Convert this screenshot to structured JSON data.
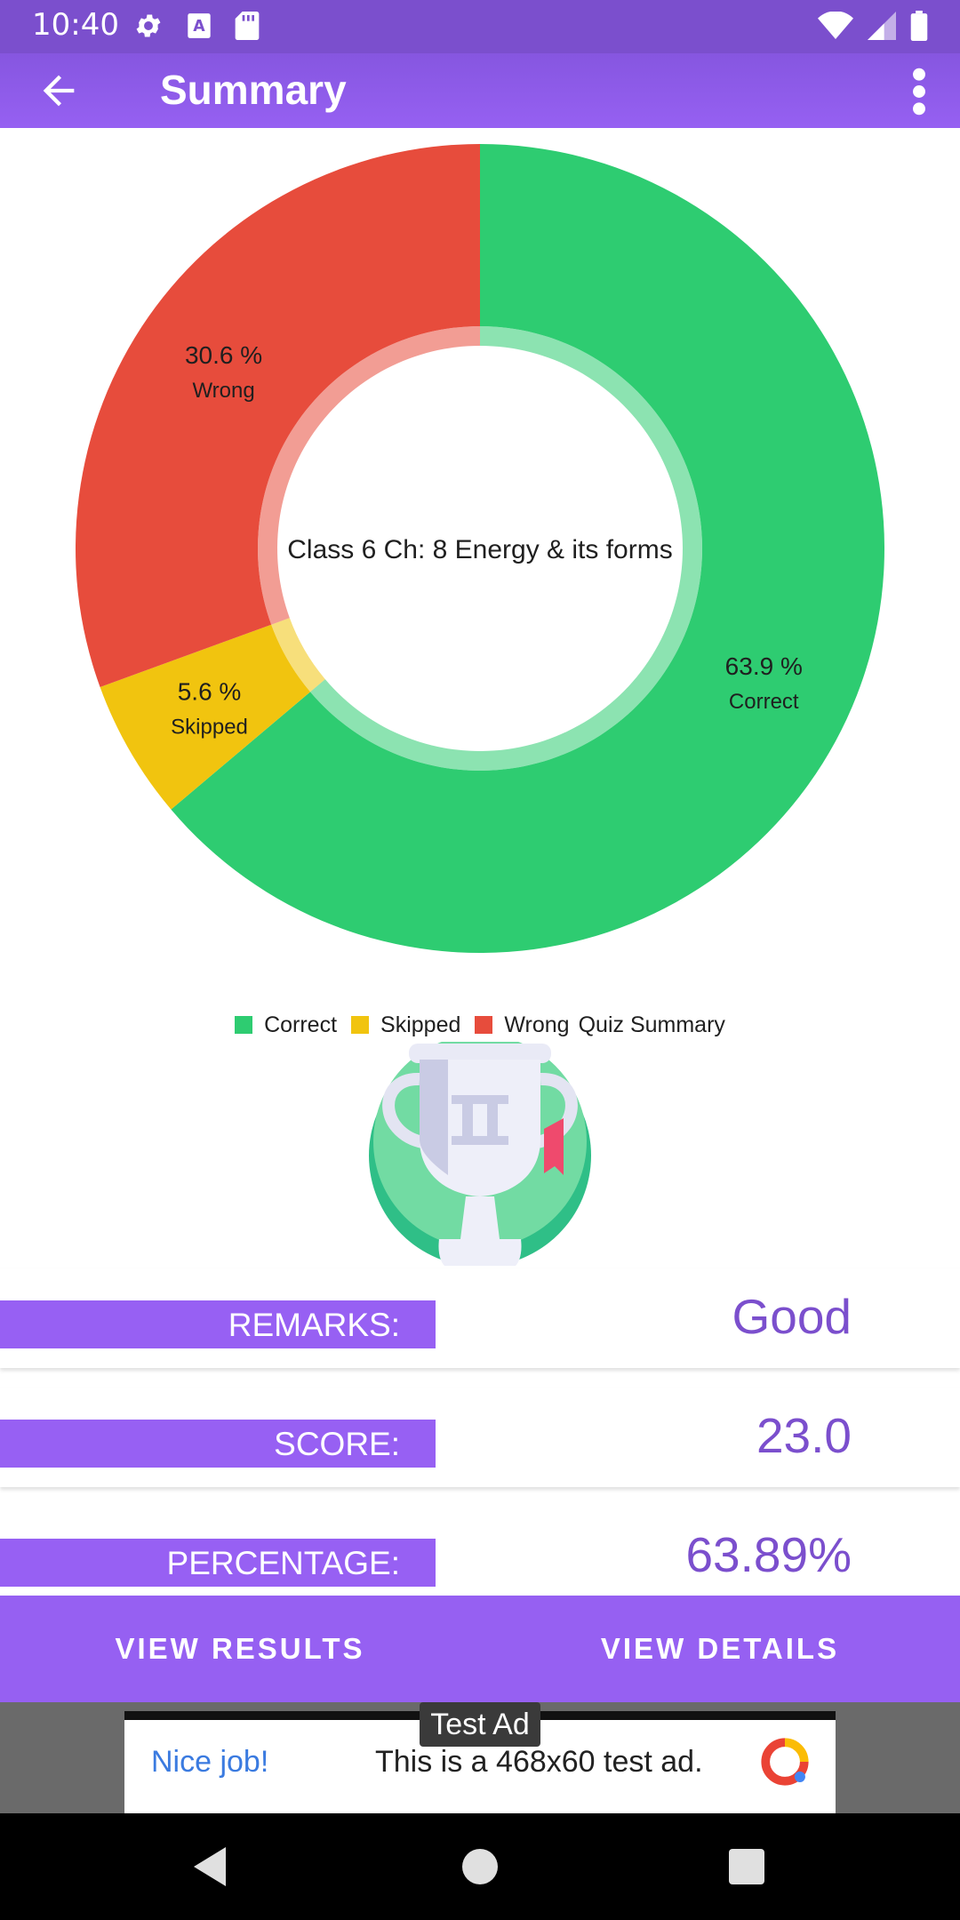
{
  "status_bar": {
    "time": "10:40",
    "left_icons": [
      "gear-icon",
      "text-a-icon",
      "sd-card-icon"
    ],
    "right_icons": [
      "wifi-icon",
      "signal-icon",
      "battery-icon"
    ]
  },
  "app_bar": {
    "title": "Summary",
    "back_icon": "arrow-back-icon",
    "menu_icon": "more-vert-icon"
  },
  "chart_data": {
    "type": "pie",
    "center_text": "Class 6 Ch: 8 Energy & its forms",
    "categories": [
      "Correct",
      "Skipped",
      "Wrong"
    ],
    "values": [
      63.9,
      5.6,
      30.6
    ],
    "value_labels": [
      "63.9 %",
      "5.6 %",
      "30.6 %"
    ],
    "colors": [
      "#2ecc71",
      "#f1c40f",
      "#e74c3c"
    ],
    "legend_position": "bottom-center",
    "legend_description": "Quiz Summary"
  },
  "trophy": {
    "icon": "trophy-icon"
  },
  "summary": {
    "remarks_label": "REMARKS:",
    "remarks_value": "Good",
    "score_label": "SCORE:",
    "score_value": "23.0",
    "percentage_label": "PERCENTAGE:",
    "percentage_value": "63.89%"
  },
  "actions": {
    "view_results": "VIEW RESULTS",
    "view_details": "VIEW DETAILS"
  },
  "ad": {
    "tag": "Test Ad",
    "headline": "Nice job!",
    "body": "This is a 468x60 test ad."
  },
  "nav_bar": {
    "icons": [
      "nav-back-icon",
      "nav-home-icon",
      "nav-recents-icon"
    ]
  },
  "colors": {
    "primary": "#7b4fcd",
    "accent": "#9660f2",
    "correct": "#2ecc71",
    "skipped": "#f1c40f",
    "wrong": "#e74c3c"
  }
}
